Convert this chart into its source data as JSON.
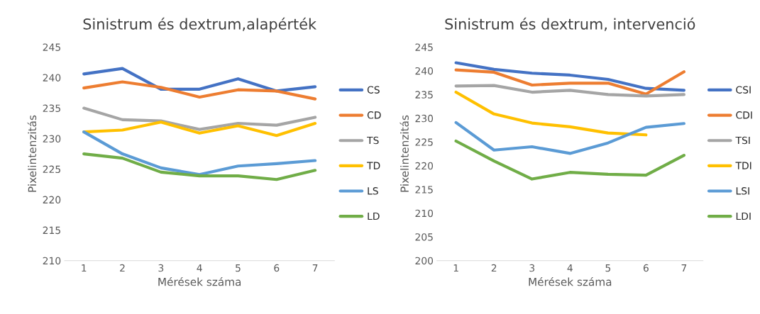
{
  "chart_data": [
    {
      "type": "line",
      "title": "Sinistrum és dextrum,alapérték",
      "xlabel": "Mérések száma",
      "ylabel": "Pixelintenzitás",
      "categories": [
        "1",
        "2",
        "3",
        "4",
        "5",
        "6",
        "7"
      ],
      "ylim": [
        210,
        245
      ],
      "yticks": [
        210,
        215,
        220,
        225,
        230,
        235,
        240,
        245
      ],
      "grid": false,
      "legend": "right",
      "marker": "none",
      "line_style": "solid",
      "series": [
        {
          "name": "CS",
          "color": "#4472c4",
          "values": [
            240.6,
            241.5,
            238.1,
            238.1,
            239.8,
            237.8,
            238.5
          ]
        },
        {
          "name": "CD",
          "color": "#ed7d31",
          "values": [
            238.3,
            239.3,
            238.4,
            236.8,
            238.0,
            237.8,
            236.5
          ]
        },
        {
          "name": "TS",
          "color": "#a5a5a5",
          "values": [
            235.0,
            233.1,
            232.9,
            231.5,
            232.5,
            232.2,
            233.5
          ]
        },
        {
          "name": "TD",
          "color": "#ffc000",
          "values": [
            231.1,
            231.4,
            232.7,
            230.9,
            232.1,
            230.5,
            232.5
          ]
        },
        {
          "name": "LS",
          "color": "#5b9bd5",
          "values": [
            231.1,
            227.5,
            225.2,
            224.1,
            225.5,
            225.9,
            226.4
          ]
        },
        {
          "name": "LD",
          "color": "#70ad47",
          "values": [
            227.5,
            226.8,
            224.5,
            223.9,
            223.9,
            223.3,
            224.8
          ]
        }
      ]
    },
    {
      "type": "line",
      "title": "Sinistrum és dextrum, intervenció",
      "xlabel": "Mérések száma",
      "ylabel": "Pixelintenzitás",
      "categories": [
        "1",
        "2",
        "3",
        "4",
        "5",
        "6",
        "7"
      ],
      "ylim": [
        200,
        245
      ],
      "yticks": [
        200,
        205,
        210,
        215,
        220,
        225,
        230,
        235,
        240,
        245
      ],
      "grid": false,
      "legend": "right",
      "marker": "none",
      "line_style": "solid",
      "series": [
        {
          "name": "CSI",
          "color": "#4472c4",
          "values": [
            241.7,
            240.3,
            239.5,
            239.1,
            238.2,
            236.3,
            235.9
          ]
        },
        {
          "name": "CDI",
          "color": "#ed7d31",
          "values": [
            240.2,
            239.7,
            237.0,
            237.4,
            237.4,
            235.1,
            239.8
          ]
        },
        {
          "name": "TSI",
          "color": "#a5a5a5",
          "values": [
            236.8,
            236.9,
            235.5,
            235.9,
            235.0,
            234.7,
            235.0
          ]
        },
        {
          "name": "TDI",
          "color": "#ffc000",
          "values": [
            235.5,
            230.9,
            229.0,
            228.2,
            226.9,
            226.5,
            null
          ]
        },
        {
          "name": "LSI",
          "color": "#5b9bd5",
          "values": [
            229.1,
            223.3,
            224.0,
            222.6,
            224.8,
            228.1,
            228.9
          ]
        },
        {
          "name": "LDI",
          "color": "#70ad47",
          "values": [
            225.2,
            221.0,
            217.2,
            218.6,
            218.2,
            218.0,
            222.2
          ]
        }
      ]
    }
  ]
}
